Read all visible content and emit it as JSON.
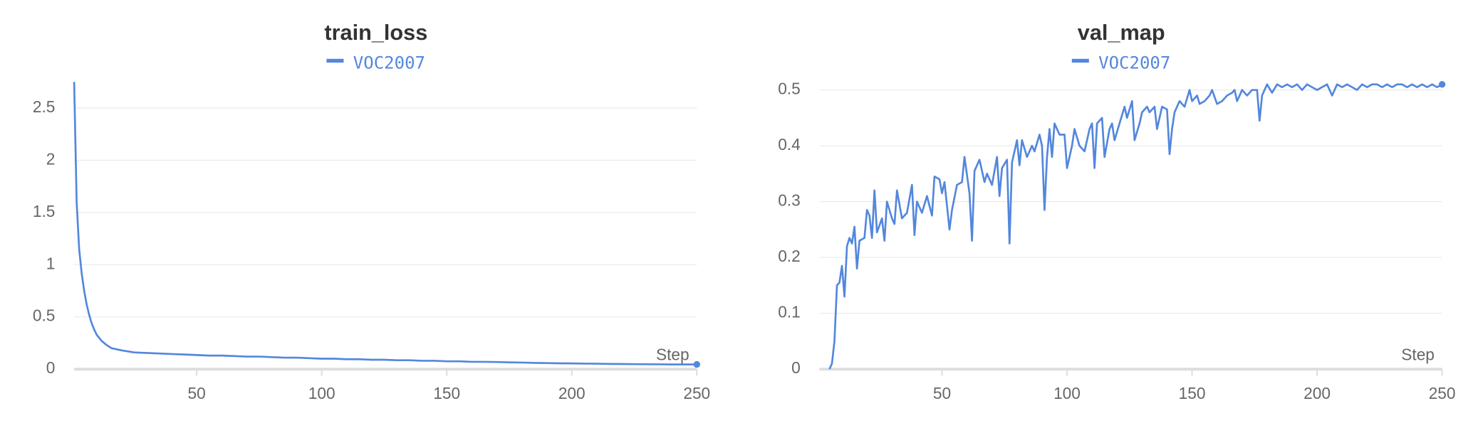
{
  "chart_data": [
    {
      "type": "line",
      "title": "train_loss",
      "xlabel": "Step",
      "xlim": [
        1,
        250
      ],
      "xticks": [
        50,
        100,
        150,
        200,
        250
      ],
      "ylim": [
        0,
        2.78
      ],
      "yticks": [
        0,
        0.5,
        1,
        1.5,
        2,
        2.5
      ],
      "grid": true,
      "x": [
        1,
        2,
        3,
        4,
        5,
        6,
        7,
        8,
        9,
        10,
        12,
        14,
        16,
        18,
        20,
        25,
        30,
        35,
        40,
        45,
        50,
        55,
        60,
        65,
        70,
        75,
        80,
        85,
        90,
        95,
        100,
        105,
        110,
        115,
        120,
        125,
        130,
        135,
        140,
        145,
        150,
        155,
        160,
        165,
        170,
        175,
        180,
        185,
        190,
        195,
        200,
        205,
        210,
        215,
        220,
        225,
        230,
        235,
        240,
        245,
        250
      ],
      "series": [
        {
          "name": "VOC2007",
          "color": "#5387dd",
          "values": [
            2.75,
            1.6,
            1.15,
            0.92,
            0.75,
            0.62,
            0.52,
            0.44,
            0.38,
            0.33,
            0.27,
            0.23,
            0.2,
            0.19,
            0.18,
            0.16,
            0.155,
            0.15,
            0.145,
            0.14,
            0.135,
            0.13,
            0.13,
            0.125,
            0.12,
            0.12,
            0.115,
            0.11,
            0.11,
            0.105,
            0.1,
            0.1,
            0.095,
            0.095,
            0.09,
            0.09,
            0.085,
            0.085,
            0.08,
            0.08,
            0.075,
            0.075,
            0.07,
            0.07,
            0.068,
            0.065,
            0.063,
            0.06,
            0.058,
            0.056,
            0.055,
            0.053,
            0.052,
            0.05,
            0.049,
            0.048,
            0.047,
            0.046,
            0.045,
            0.045,
            0.045
          ]
        }
      ]
    },
    {
      "type": "line",
      "title": "val_map",
      "xlabel": "Step",
      "xlim": [
        1,
        250
      ],
      "xticks": [
        50,
        100,
        150,
        200,
        250
      ],
      "ylim": [
        0,
        0.52
      ],
      "yticks": [
        0,
        0.1,
        0.2,
        0.3,
        0.4,
        0.5
      ],
      "grid": true,
      "x": [
        5,
        6,
        7,
        8,
        9,
        10,
        11,
        12,
        13,
        14,
        15,
        16,
        17,
        19,
        20,
        21,
        22,
        23,
        24,
        26,
        27,
        28,
        30,
        31,
        32,
        34,
        36,
        38,
        39,
        40,
        42,
        44,
        46,
        47,
        49,
        50,
        51,
        53,
        54,
        56,
        58,
        59,
        61,
        62,
        63,
        65,
        67,
        68,
        70,
        72,
        73,
        74,
        76,
        77,
        78,
        80,
        81,
        82,
        84,
        86,
        87,
        89,
        90,
        91,
        92,
        93,
        94,
        95,
        97,
        99,
        100,
        102,
        103,
        105,
        107,
        109,
        110,
        111,
        112,
        114,
        115,
        117,
        118,
        119,
        121,
        123,
        124,
        126,
        127,
        129,
        130,
        132,
        133,
        135,
        136,
        138,
        140,
        141,
        142,
        143,
        145,
        147,
        149,
        150,
        152,
        153,
        155,
        157,
        158,
        160,
        162,
        164,
        166,
        167,
        168,
        170,
        172,
        174,
        176,
        177,
        178,
        180,
        182,
        184,
        186,
        188,
        190,
        192,
        194,
        196,
        198,
        200,
        202,
        204,
        206,
        208,
        210,
        212,
        214,
        216,
        218,
        220,
        222,
        224,
        226,
        228,
        230,
        232,
        234,
        236,
        238,
        240,
        242,
        244,
        246,
        248,
        250
      ],
      "series": [
        {
          "name": "VOC2007",
          "color": "#5387dd",
          "values": [
            0,
            0.01,
            0.05,
            0.15,
            0.155,
            0.185,
            0.13,
            0.22,
            0.235,
            0.225,
            0.255,
            0.18,
            0.23,
            0.235,
            0.285,
            0.275,
            0.235,
            0.32,
            0.245,
            0.27,
            0.23,
            0.3,
            0.27,
            0.26,
            0.32,
            0.27,
            0.28,
            0.33,
            0.24,
            0.3,
            0.28,
            0.31,
            0.275,
            0.345,
            0.34,
            0.315,
            0.335,
            0.25,
            0.285,
            0.33,
            0.335,
            0.38,
            0.315,
            0.23,
            0.355,
            0.375,
            0.335,
            0.35,
            0.33,
            0.38,
            0.31,
            0.36,
            0.375,
            0.225,
            0.37,
            0.41,
            0.365,
            0.41,
            0.38,
            0.4,
            0.39,
            0.42,
            0.4,
            0.285,
            0.38,
            0.43,
            0.38,
            0.44,
            0.42,
            0.42,
            0.36,
            0.4,
            0.43,
            0.4,
            0.39,
            0.43,
            0.44,
            0.36,
            0.44,
            0.45,
            0.38,
            0.43,
            0.44,
            0.41,
            0.44,
            0.47,
            0.45,
            0.48,
            0.41,
            0.44,
            0.46,
            0.47,
            0.46,
            0.47,
            0.43,
            0.47,
            0.465,
            0.385,
            0.43,
            0.46,
            0.48,
            0.47,
            0.5,
            0.48,
            0.49,
            0.475,
            0.48,
            0.49,
            0.5,
            0.475,
            0.48,
            0.49,
            0.495,
            0.5,
            0.48,
            0.5,
            0.49,
            0.5,
            0.5,
            0.445,
            0.49,
            0.51,
            0.495,
            0.51,
            0.505,
            0.51,
            0.505,
            0.51,
            0.5,
            0.51,
            0.505,
            0.5,
            0.505,
            0.51,
            0.49,
            0.51,
            0.505,
            0.51,
            0.505,
            0.5,
            0.51,
            0.505,
            0.51,
            0.51,
            0.505,
            0.51,
            0.505,
            0.51,
            0.51,
            0.505,
            0.51,
            0.505,
            0.51,
            0.505,
            0.51,
            0.505,
            0.51
          ]
        }
      ]
    }
  ]
}
